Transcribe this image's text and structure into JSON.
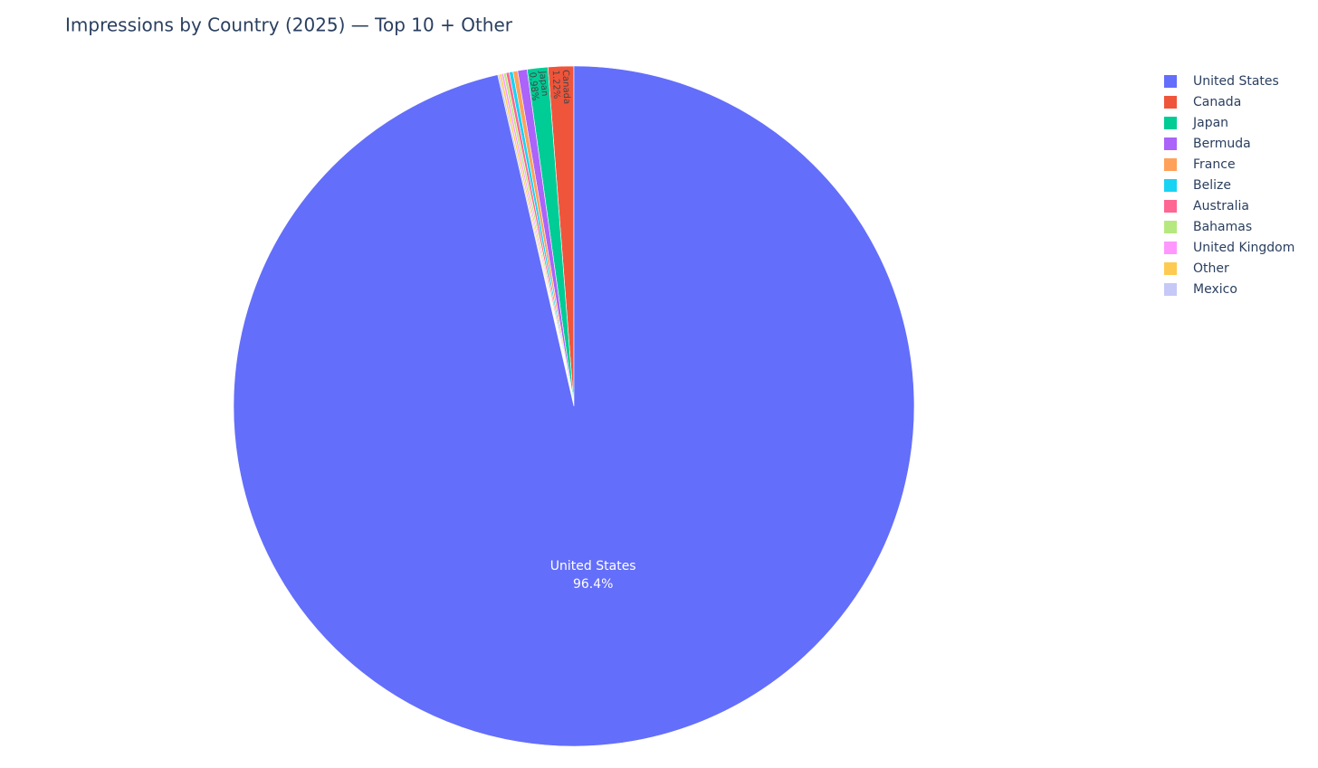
{
  "chart_data": {
    "type": "pie",
    "title": "Impressions by Country (2025) — Top 10 + Other",
    "categories": [
      "United States",
      "Canada",
      "Japan",
      "Bermuda",
      "France",
      "Belize",
      "Australia",
      "Bahamas",
      "United Kingdom",
      "Other",
      "Mexico"
    ],
    "values": [
      96.4,
      1.22,
      0.98,
      0.45,
      0.22,
      0.18,
      0.15,
      0.12,
      0.1,
      0.1,
      0.08
    ],
    "value_labels": [
      "96.4%",
      "1.22%",
      "0.98%",
      null,
      null,
      null,
      null,
      null,
      null,
      null,
      null
    ],
    "colors": [
      "#636efa",
      "#ef553b",
      "#00cc96",
      "#ab63fa",
      "#ffa15a",
      "#19d3f3",
      "#ff6692",
      "#b6e880",
      "#ff97ff",
      "#fecb52",
      "#c6c9f7"
    ],
    "legend": "right"
  }
}
